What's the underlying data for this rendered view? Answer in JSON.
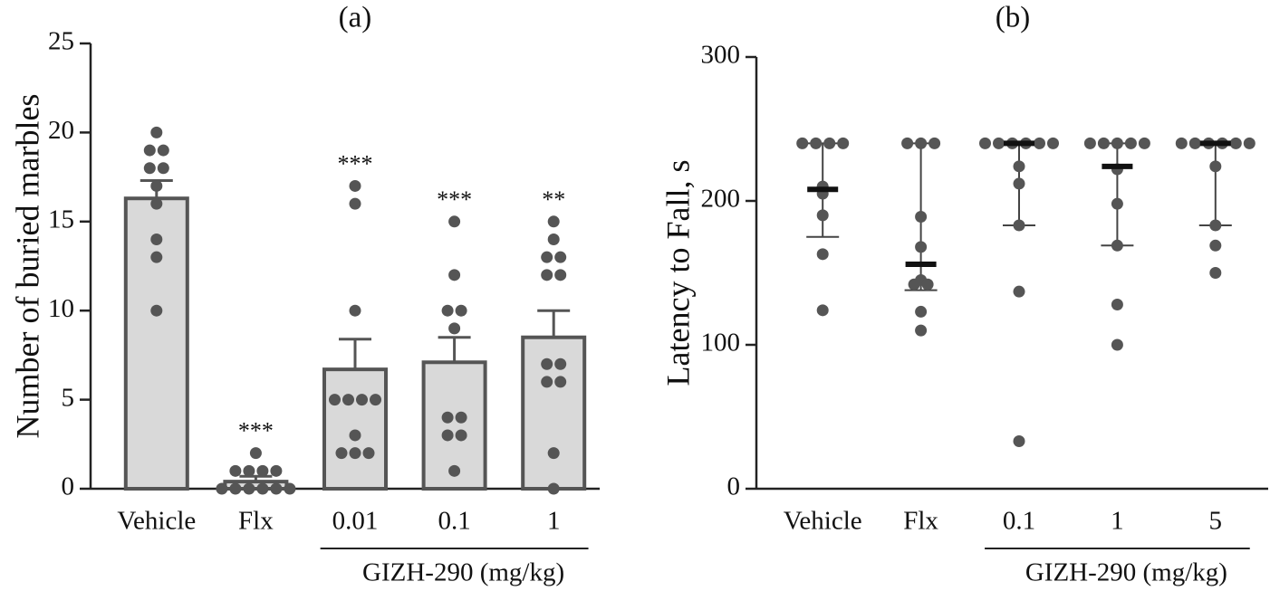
{
  "chart_data": [
    {
      "type": "bar",
      "title": "(a)",
      "ylabel": "Number of buried marbles",
      "categories": [
        "Vehicle",
        "Flx",
        "0.01",
        "0.1",
        "1"
      ],
      "values": [
        16.3,
        0.4,
        6.7,
        7.1,
        8.5
      ],
      "errors": [
        1.0,
        0.3,
        1.7,
        1.4,
        1.5
      ],
      "points": [
        [
          20,
          19,
          19,
          18,
          18,
          17,
          16,
          14,
          13,
          10
        ],
        [
          2,
          1,
          1,
          1,
          1,
          0,
          0,
          0,
          0,
          0,
          0
        ],
        [
          17,
          16,
          10,
          5,
          5,
          5,
          5,
          3,
          2,
          2,
          2
        ],
        [
          15,
          12,
          10,
          10,
          9,
          4,
          4,
          3,
          3,
          1
        ],
        [
          15,
          14,
          13,
          13,
          12,
          12,
          7,
          7,
          6,
          6,
          2,
          0
        ]
      ],
      "annotations": [
        null,
        "***",
        "***",
        "***",
        "**"
      ],
      "group_label": "GIZH-290 (mg/kg)",
      "color": "#d9d9d9",
      "point_color": "#555555",
      "ylim": [
        0,
        25
      ],
      "yticks": [
        0,
        5,
        10,
        15,
        20,
        25
      ]
    },
    {
      "type": "strip",
      "title": "(b)",
      "ylabel": "Latency to Fall, s",
      "categories": [
        "Vehicle",
        "Flx",
        "0.1",
        "1",
        "5"
      ],
      "medians": [
        208,
        156,
        240,
        224,
        240
      ],
      "lower": [
        175,
        138,
        183,
        169,
        183
      ],
      "upper": [
        240,
        240,
        240,
        240,
        240
      ],
      "points": [
        [
          240,
          240,
          240,
          240,
          210,
          205,
          190,
          163,
          124
        ],
        [
          240,
          240,
          240,
          189,
          168,
          145,
          142,
          142,
          123,
          110
        ],
        [
          240,
          240,
          240,
          240,
          240,
          240,
          224,
          212,
          183,
          137,
          33
        ],
        [
          240,
          240,
          240,
          240,
          240,
          222,
          198,
          169,
          128,
          100
        ],
        [
          240,
          240,
          240,
          240,
          240,
          240,
          224,
          183,
          169,
          150
        ]
      ],
      "group_label": "GIZH-290 (mg/kg)",
      "point_color": "#555555",
      "ylim": [
        0,
        300
      ],
      "yticks": [
        0,
        100,
        200,
        300
      ]
    }
  ]
}
